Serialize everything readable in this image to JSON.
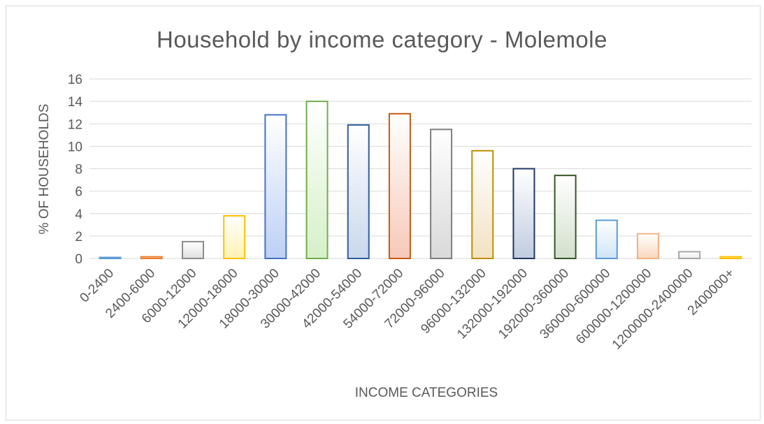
{
  "chart_data": {
    "type": "bar",
    "title": "Household  by income category - Molemole",
    "xlabel": "INCOME CATEGORIES",
    "ylabel": "% OF HOUSEHOLDS",
    "ylim": [
      0,
      16
    ],
    "yticks": [
      0,
      2,
      4,
      6,
      8,
      10,
      12,
      14,
      16
    ],
    "grid": true,
    "legend": "none",
    "categories": [
      "0-2400",
      "2400-6000",
      "6000-12000",
      "12000-18000",
      "18000-30000",
      "30000-42000",
      "42000-54000",
      "54000-72000",
      "72000-96000",
      "96000-132000",
      "132000-192000",
      "192000-360000",
      "360000-600000",
      "600000-1200000",
      "1200000-2400000",
      "2400000+"
    ],
    "values": [
      0.05,
      0.15,
      1.5,
      3.8,
      12.8,
      14.0,
      11.9,
      12.9,
      11.5,
      9.6,
      8.0,
      7.4,
      3.4,
      2.2,
      0.6,
      0.15
    ],
    "bar_colors": [
      {
        "edge": "#5b9bd5",
        "fill": "#deebf7"
      },
      {
        "edge": "#ed7d31",
        "fill": "#f8cbad"
      },
      {
        "edge": "#8c8c8c",
        "fill": "#e0e0e0"
      },
      {
        "edge": "#ffc000",
        "fill": "#fff2b3"
      },
      {
        "edge": "#4472c4",
        "fill": "#bcd0f5"
      },
      {
        "edge": "#70ad47",
        "fill": "#d6f0c8"
      },
      {
        "edge": "#2e5d9a",
        "fill": "#c9d8ec"
      },
      {
        "edge": "#c55a11",
        "fill": "#f6c9b9"
      },
      {
        "edge": "#7f7f7f",
        "fill": "#d9d9d9"
      },
      {
        "edge": "#bf9000",
        "fill": "#f2e2c2"
      },
      {
        "edge": "#203864",
        "fill": "#c2cbe0"
      },
      {
        "edge": "#375623",
        "fill": "#d3e0cd"
      },
      {
        "edge": "#5b9bd5",
        "fill": "#cfe4f7"
      },
      {
        "edge": "#f4b183",
        "fill": "#fbd7bf"
      },
      {
        "edge": "#a6a6a6",
        "fill": "#ececec"
      },
      {
        "edge": "#ffc000",
        "fill": "#fff0b3"
      }
    ]
  },
  "colors": {
    "gridline": "#d9d9d9",
    "text": "#595959"
  }
}
